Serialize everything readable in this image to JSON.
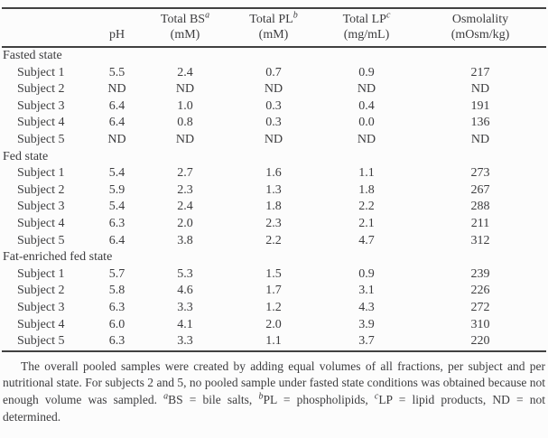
{
  "table": {
    "header": [
      {
        "line1": "",
        "sup": "",
        "line2": ""
      },
      {
        "line1": "",
        "sup": "",
        "line2": "pH"
      },
      {
        "line1": "Total BS",
        "sup": "a",
        "line2": "(mM)"
      },
      {
        "line1": "Total PL",
        "sup": "b",
        "line2": "(mM)"
      },
      {
        "line1": "Total LP",
        "sup": "c",
        "line2": "(mg/mL)"
      },
      {
        "line1": "Osmolality",
        "sup": "",
        "line2": "(mOsm/kg)"
      }
    ],
    "groups": [
      {
        "name": "Fasted state",
        "rows": [
          {
            "label": "Subject 1",
            "values": [
              "5.5",
              "2.4",
              "0.7",
              "0.9",
              "217"
            ]
          },
          {
            "label": "Subject 2",
            "values": [
              "ND",
              "ND",
              "ND",
              "ND",
              "ND"
            ]
          },
          {
            "label": "Subject 3",
            "values": [
              "6.4",
              "1.0",
              "0.3",
              "0.4",
              "191"
            ]
          },
          {
            "label": "Subject 4",
            "values": [
              "6.4",
              "0.8",
              "0.3",
              "0.0",
              "136"
            ]
          },
          {
            "label": "Subject 5",
            "values": [
              "ND",
              "ND",
              "ND",
              "ND",
              "ND"
            ]
          }
        ]
      },
      {
        "name": "Fed state",
        "rows": [
          {
            "label": "Subject 1",
            "values": [
              "5.4",
              "2.7",
              "1.6",
              "1.1",
              "273"
            ]
          },
          {
            "label": "Subject 2",
            "values": [
              "5.9",
              "2.3",
              "1.3",
              "1.8",
              "267"
            ]
          },
          {
            "label": "Subject 3",
            "values": [
              "5.4",
              "2.4",
              "1.8",
              "2.2",
              "288"
            ]
          },
          {
            "label": "Subject 4",
            "values": [
              "6.3",
              "2.0",
              "2.3",
              "2.1",
              "211"
            ]
          },
          {
            "label": "Subject 5",
            "values": [
              "6.4",
              "3.8",
              "2.2",
              "4.7",
              "312"
            ]
          }
        ]
      },
      {
        "name": "Fat-enriched fed state",
        "rows": [
          {
            "label": "Subject 1",
            "values": [
              "5.7",
              "5.3",
              "1.5",
              "0.9",
              "239"
            ]
          },
          {
            "label": "Subject 2",
            "values": [
              "5.8",
              "4.6",
              "1.7",
              "3.1",
              "226"
            ]
          },
          {
            "label": "Subject 3",
            "values": [
              "6.3",
              "3.3",
              "1.2",
              "4.3",
              "272"
            ]
          },
          {
            "label": "Subject 4",
            "values": [
              "6.0",
              "4.1",
              "2.0",
              "3.9",
              "310"
            ]
          },
          {
            "label": "Subject 5",
            "values": [
              "6.3",
              "3.3",
              "1.1",
              "3.7",
              "220"
            ]
          }
        ]
      }
    ]
  },
  "footnote": {
    "segments": [
      {
        "text": "The overall pooled samples were created by adding equal volumes of all fractions, per subject and per nutritional state. For subjects 2 and 5, no pooled sample under fasted state conditions was obtained because not enough volume was sampled. "
      },
      {
        "sup": "a"
      },
      {
        "text": "BS = bile salts, "
      },
      {
        "sup": "b"
      },
      {
        "text": "PL = phospholipids, "
      },
      {
        "sup": "c"
      },
      {
        "text": "LP = lipid products, ND = not determined."
      }
    ]
  }
}
